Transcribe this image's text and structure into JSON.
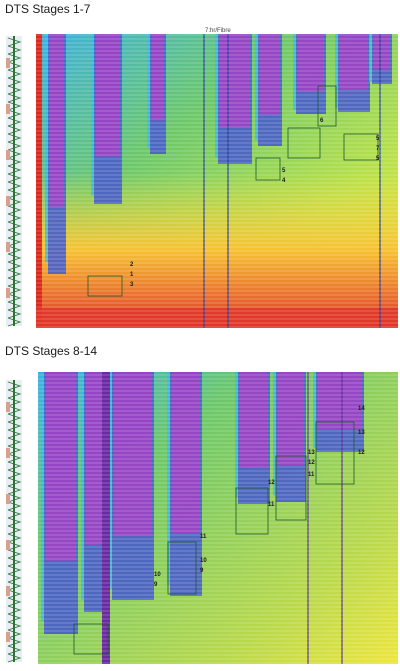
{
  "panels": [
    {
      "title": "DTS Stages 1-7",
      "header_label": "7:hr/Fibre",
      "stage_marks": [
        "2",
        "1",
        "3",
        "5",
        "4",
        "6",
        "5",
        "7",
        "5"
      ],
      "palette": {
        "hot": "#d9281c",
        "warm": "#f4ec3c",
        "mid": "#7ccf5a",
        "cool": "#3db7e8",
        "cold": "#4a63c8",
        "coldest": "#b23ec6"
      }
    },
    {
      "title": "DTS Stages 8-14",
      "header_label": "",
      "stage_marks": [
        "10",
        "9",
        "11",
        "10",
        "9",
        "12",
        "11",
        "13",
        "12",
        "11",
        "14",
        "13",
        "12"
      ],
      "palette": {
        "hot": "#e8e23c",
        "warm": "#f4ec3c",
        "mid": "#7ccf5a",
        "cool": "#3db7e8",
        "cold": "#4a63c8",
        "coldest": "#b23ec6"
      }
    }
  ]
}
